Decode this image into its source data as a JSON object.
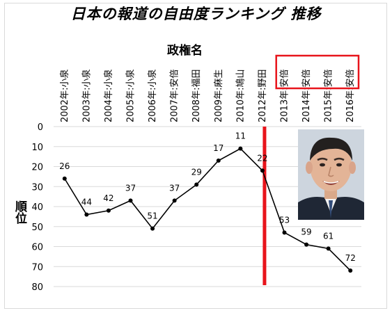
{
  "chart_data": {
    "type": "line",
    "title": "日本の報道の自由度ランキング 推移",
    "xlabel": "政権名",
    "ylabel": "順位",
    "categories": [
      "2002年:小泉",
      "2003年:小泉",
      "2004年:小泉",
      "2005年:小泉",
      "2006年:小泉",
      "2007年:安倍",
      "2008年:福田",
      "2009年:麻生",
      "2010年:鳩山",
      "2012年:野田",
      "2013年:安倍",
      "2014年:安倍",
      "2015年:安倍",
      "2016年:安倍"
    ],
    "series": [
      {
        "values": [
          26,
          44,
          42,
          37,
          51,
          37,
          29,
          17,
          11,
          22,
          53,
          59,
          61,
          72
        ]
      }
    ],
    "yticks": [
      0,
      10,
      20,
      30,
      40,
      50,
      60,
      70,
      80
    ],
    "ylim": [
      0,
      80
    ],
    "y_inverted": true,
    "grid": "horizontal",
    "marker_between_categories": "2012年:野田",
    "highlighted_categories": [
      "2013年:安倍",
      "2014年:安倍",
      "2015年:安倍",
      "2016年:安倍"
    ],
    "colors": {
      "line": "#000000",
      "grid": "#d9d9d9",
      "marker_line": "#e8141b",
      "highlight_box": "#e8141b"
    }
  },
  "photo": {
    "description_icon": "portrait-photo"
  }
}
